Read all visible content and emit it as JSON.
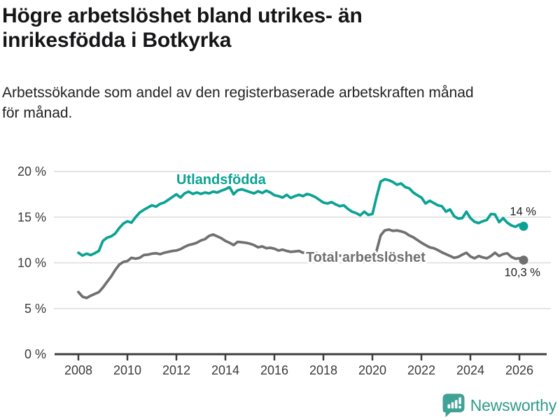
{
  "header": {
    "title_lines": [
      "Högre arbetslöshet bland utrikes- än",
      "inrikesfödda i Botkyrka"
    ],
    "subtitle_lines": [
      "Arbetssökande som andel av den registerbaserade arbetskraften månad",
      "för månad."
    ],
    "title_full": "Högre arbetslöshet bland utrikes- än inrikesfödda i Botkyrka",
    "subtitle_full": "Arbetssökande som andel av den registerbaserade arbetskraften månad för månad."
  },
  "branding": {
    "logo_text": "Newsworthy",
    "logo_icon": "bar-chart-speech-bubble-icon",
    "brand_color": "#2f9a8b",
    "icon_bg_color": "#40a295"
  },
  "chart_data": {
    "type": "line",
    "title": "Högre arbetslöshet bland utrikes- än inrikesfödda i Botkyrka",
    "subtitle": "Arbetssökande som andel av den registerbaserade arbetskraften månad för månad.",
    "unit": "%",
    "x_start": 2008.0,
    "x_step_years": 0.1667,
    "x_ticks": [
      2008,
      2010,
      2012,
      2014,
      2016,
      2018,
      2020,
      2022,
      2024,
      2026
    ],
    "y_ticks": [
      0,
      5,
      10,
      15,
      20
    ],
    "y_tick_suffix": " %",
    "ylim": [
      0,
      20.6
    ],
    "grid": "horizontal",
    "legend_position": "inline-labels",
    "series": [
      {
        "name": "Utlandsfödda",
        "color": "#0ba294",
        "end_label": "14 %",
        "end_value": 14.0,
        "values": [
          11.1,
          10.8,
          11.0,
          10.85,
          11.05,
          11.3,
          12.4,
          12.75,
          12.9,
          13.2,
          13.8,
          14.3,
          14.55,
          14.4,
          15.0,
          15.5,
          15.8,
          16.05,
          16.3,
          16.15,
          16.45,
          16.6,
          16.9,
          17.2,
          17.5,
          17.15,
          17.6,
          17.8,
          17.55,
          17.7,
          17.55,
          17.7,
          17.6,
          17.8,
          17.7,
          17.9,
          18.05,
          18.3,
          17.5,
          17.95,
          18.05,
          17.9,
          17.75,
          17.6,
          17.85,
          17.65,
          17.9,
          17.7,
          17.4,
          17.3,
          17.15,
          17.45,
          17.1,
          17.3,
          17.45,
          17.3,
          17.55,
          17.4,
          17.2,
          16.9,
          16.6,
          16.5,
          16.65,
          16.4,
          16.2,
          16.3,
          15.9,
          15.6,
          15.45,
          15.2,
          15.6,
          15.25,
          15.35,
          17.2,
          18.9,
          19.15,
          19.05,
          18.85,
          18.55,
          18.7,
          18.3,
          18.15,
          17.7,
          17.4,
          17.15,
          16.5,
          16.8,
          16.55,
          16.3,
          16.2,
          15.6,
          15.85,
          15.1,
          14.85,
          14.9,
          15.6,
          14.9,
          14.5,
          14.35,
          14.55,
          14.7,
          15.35,
          15.3,
          14.45,
          14.9,
          14.4,
          14.1,
          13.95,
          14.2,
          14.0
        ]
      },
      {
        "name": "Total arbetslöshet",
        "color": "#707070",
        "end_label": "10,3 %",
        "end_value": 10.3,
        "values": [
          6.8,
          6.3,
          6.15,
          6.4,
          6.6,
          6.8,
          7.3,
          7.9,
          8.5,
          9.2,
          9.8,
          10.1,
          10.2,
          10.55,
          10.45,
          10.55,
          10.85,
          10.9,
          11.0,
          11.05,
          10.95,
          11.1,
          11.2,
          11.3,
          11.35,
          11.5,
          11.75,
          11.95,
          12.05,
          12.2,
          12.45,
          12.6,
          12.95,
          13.1,
          12.9,
          12.7,
          12.4,
          12.2,
          11.95,
          12.3,
          12.25,
          12.2,
          12.1,
          11.95,
          11.7,
          11.8,
          11.6,
          11.65,
          11.55,
          11.35,
          11.45,
          11.3,
          11.2,
          11.25,
          11.3,
          11.1,
          11.2,
          11.05,
          11.15,
          10.95,
          11.0,
          10.85,
          11.05,
          10.85,
          10.8,
          10.7,
          10.75,
          10.55,
          10.65,
          10.45,
          10.55,
          10.4,
          10.55,
          11.3,
          13.0,
          13.55,
          13.65,
          13.5,
          13.55,
          13.45,
          13.3,
          13.0,
          12.8,
          12.5,
          12.2,
          11.95,
          11.7,
          11.6,
          11.4,
          11.15,
          10.95,
          10.75,
          10.55,
          10.65,
          10.9,
          11.1,
          10.7,
          10.5,
          10.75,
          10.6,
          10.5,
          10.75,
          11.1,
          10.75,
          10.95,
          11.05,
          10.65,
          10.45,
          10.5,
          10.3
        ]
      }
    ]
  }
}
